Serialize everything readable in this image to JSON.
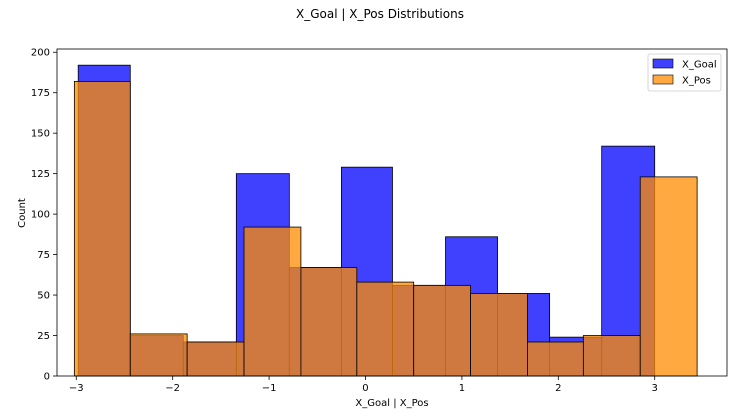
{
  "chart_data": {
    "type": "histogram",
    "title": "X_Goal | X_Pos Distributions",
    "xlabel": "X_Goal | X_Pos",
    "ylabel": "Count",
    "xlim": [
      -3.2,
      3.75
    ],
    "ylim": [
      0,
      202
    ],
    "xticks": [
      -3,
      -2,
      -1,
      0,
      1,
      2,
      3
    ],
    "xtick_labels": [
      "−3",
      "−2",
      "−1",
      "0",
      "1",
      "2",
      "3"
    ],
    "yticks": [
      0,
      25,
      50,
      75,
      100,
      125,
      150,
      175,
      200
    ],
    "ytick_labels": [
      "0",
      "25",
      "50",
      "75",
      "100",
      "125",
      "150",
      "175",
      "200"
    ],
    "grid": false,
    "legend_position": "top-right",
    "series": [
      {
        "name": "X_Goal",
        "color": "#0000ff",
        "opacity": 0.75,
        "bins": [
          {
            "x0": -2.98,
            "x1": -2.44,
            "count": 192
          },
          {
            "x0": -2.44,
            "x1": -1.89,
            "count": 25
          },
          {
            "x0": -1.89,
            "x1": -1.34,
            "count": 21
          },
          {
            "x0": -1.34,
            "x1": -0.79,
            "count": 125
          },
          {
            "x0": -0.79,
            "x1": -0.25,
            "count": 67
          },
          {
            "x0": -0.25,
            "x1": 0.28,
            "count": 129
          },
          {
            "x0": 0.28,
            "x1": 0.83,
            "count": 56
          },
          {
            "x0": 0.83,
            "x1": 1.37,
            "count": 86
          },
          {
            "x0": 1.37,
            "x1": 1.91,
            "count": 51
          },
          {
            "x0": 1.91,
            "x1": 2.45,
            "count": 24
          },
          {
            "x0": 2.45,
            "x1": 3.0,
            "count": 142
          }
        ]
      },
      {
        "name": "X_Pos",
        "color": "#ff8c00",
        "opacity": 0.75,
        "bins": [
          {
            "x0": -3.02,
            "x1": -2.44,
            "count": 182
          },
          {
            "x0": -2.44,
            "x1": -1.85,
            "count": 26
          },
          {
            "x0": -1.85,
            "x1": -1.26,
            "count": 21
          },
          {
            "x0": -1.26,
            "x1": -0.67,
            "count": 92
          },
          {
            "x0": -0.67,
            "x1": -0.09,
            "count": 67
          },
          {
            "x0": -0.09,
            "x1": 0.5,
            "count": 58
          },
          {
            "x0": 0.5,
            "x1": 1.09,
            "count": 56
          },
          {
            "x0": 1.09,
            "x1": 1.68,
            "count": 51
          },
          {
            "x0": 1.68,
            "x1": 2.26,
            "count": 21
          },
          {
            "x0": 2.26,
            "x1": 2.85,
            "count": 25
          },
          {
            "x0": 2.85,
            "x1": 3.44,
            "count": 123
          }
        ]
      }
    ]
  }
}
